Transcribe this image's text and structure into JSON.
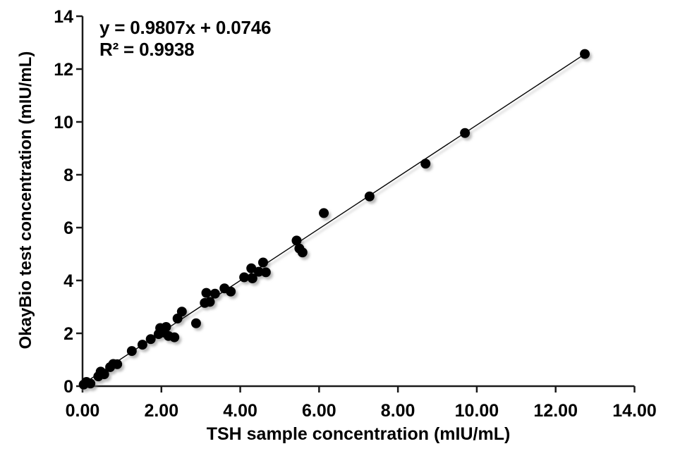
{
  "figure": {
    "background": "#ffffff",
    "text_color": "#000000"
  },
  "chart_data": {
    "type": "scatter",
    "title": "",
    "xlabel": "TSH sample concentration (mIU/mL)",
    "ylabel": "OkayBio test concentration (mIU/mL)",
    "xlim": [
      0,
      14
    ],
    "ylim": [
      0,
      14
    ],
    "grid": false,
    "x_ticks": [
      0,
      2,
      4,
      6,
      8,
      10,
      12,
      14
    ],
    "x_tick_labels": [
      "0.00",
      "2.00",
      "4.00",
      "6.00",
      "8.00",
      "10.00",
      "12.00",
      "14.00"
    ],
    "y_ticks": [
      0,
      2,
      4,
      6,
      8,
      10,
      12,
      14
    ],
    "y_tick_labels": [
      "0",
      "2",
      "4",
      "6",
      "8",
      "10",
      "12",
      "14"
    ],
    "axis_color": "#1a1a1a",
    "marker_color": "#000000",
    "marker_radius": 7,
    "trendline": {
      "slope": 0.9807,
      "intercept": 0.0746,
      "equation": "y = 0.9807x + 0.0746",
      "r_squared_label": "R² = 0.9938",
      "color": "#000000",
      "x_start": 0.02,
      "x_end": 12.74
    },
    "points": [
      [
        0.03,
        0.06
      ],
      [
        0.1,
        0.16
      ],
      [
        0.2,
        0.1
      ],
      [
        0.4,
        0.37
      ],
      [
        0.46,
        0.55
      ],
      [
        0.55,
        0.45
      ],
      [
        0.7,
        0.72
      ],
      [
        0.78,
        0.84
      ],
      [
        0.88,
        0.83
      ],
      [
        1.25,
        1.33
      ],
      [
        1.52,
        1.57
      ],
      [
        1.73,
        1.78
      ],
      [
        1.93,
        1.97
      ],
      [
        1.97,
        2.2
      ],
      [
        2.06,
        2.03
      ],
      [
        2.12,
        2.24
      ],
      [
        2.18,
        1.9
      ],
      [
        2.33,
        1.85
      ],
      [
        2.41,
        2.56
      ],
      [
        2.52,
        2.82
      ],
      [
        2.88,
        2.38
      ],
      [
        3.1,
        3.15
      ],
      [
        3.14,
        3.53
      ],
      [
        3.23,
        3.19
      ],
      [
        3.36,
        3.5
      ],
      [
        3.6,
        3.7
      ],
      [
        3.76,
        3.58
      ],
      [
        4.1,
        4.12
      ],
      [
        4.28,
        4.46
      ],
      [
        4.31,
        4.08
      ],
      [
        4.47,
        4.33
      ],
      [
        4.58,
        4.68
      ],
      [
        4.65,
        4.31
      ],
      [
        5.43,
        5.51
      ],
      [
        5.5,
        5.21
      ],
      [
        5.58,
        5.06
      ],
      [
        6.12,
        6.55
      ],
      [
        7.28,
        7.18
      ],
      [
        8.7,
        8.42
      ],
      [
        9.7,
        9.58
      ],
      [
        12.74,
        12.57
      ]
    ]
  }
}
